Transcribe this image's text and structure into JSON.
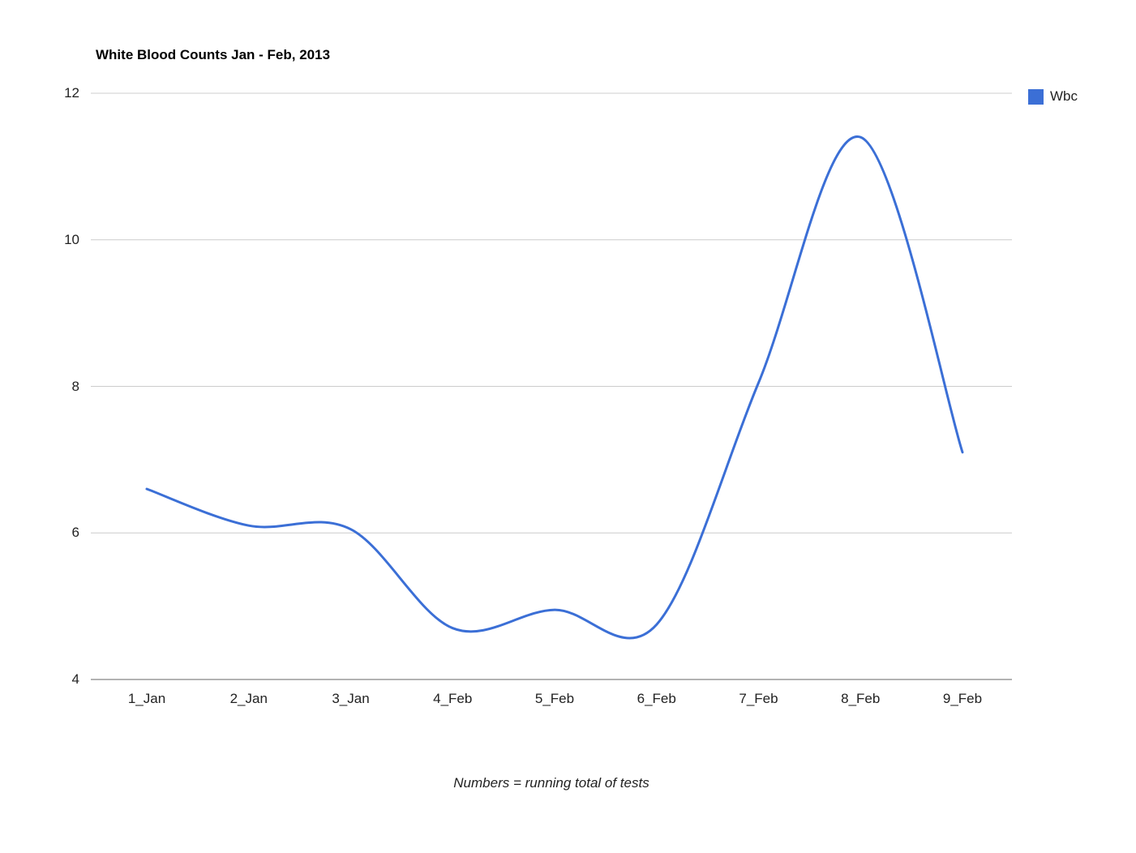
{
  "chart_data": {
    "type": "line",
    "title": "White Blood Counts Jan - Feb, 2013",
    "categories": [
      "1_Jan",
      "2_Jan",
      "3_Jan",
      "4_Feb",
      "5_Feb",
      "6_Feb",
      "7_Feb",
      "8_Feb",
      "9_Feb"
    ],
    "series": [
      {
        "name": "Wbc",
        "color": "#3b6fd6",
        "values": [
          6.6,
          6.1,
          6.05,
          4.7,
          4.95,
          4.75,
          8.05,
          11.4,
          7.1
        ]
      }
    ],
    "xlabel": "",
    "ylabel": "",
    "ylim": [
      4,
      12
    ],
    "yticks": [
      4,
      6,
      8,
      10,
      12
    ],
    "grid": true,
    "curve": "smooth",
    "legend_position": "top-right",
    "annotation": "Numbers = running total of tests",
    "colors": {
      "series": "#3b6fd6",
      "gridline": "#cccccc",
      "baseline": "#666666",
      "axis_text": "#222222",
      "title_text": "#000000"
    }
  }
}
